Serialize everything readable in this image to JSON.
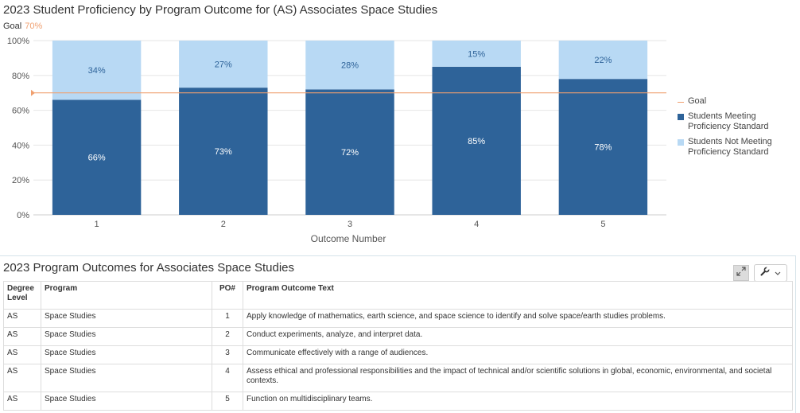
{
  "chart_title": "2023 Student Proficiency by Program Outcome for (AS) Associates Space Studies",
  "goal_label": "Goal",
  "goal_value_label": "70%",
  "colors": {
    "meeting": "#2e6399",
    "not_meeting": "#b8d9f4",
    "goal_line": "#f0a070",
    "grid": "#e6e6e6"
  },
  "chart_data": {
    "type": "bar",
    "stacked": true,
    "categories": [
      "1",
      "2",
      "3",
      "4",
      "5"
    ],
    "series": [
      {
        "name": "Students Meeting Proficiency Standard",
        "values": [
          66,
          73,
          72,
          85,
          78
        ]
      },
      {
        "name": "Students Not Meeting Proficiency Standard",
        "values": [
          34,
          27,
          28,
          15,
          22
        ]
      }
    ],
    "goal": 70,
    "xlabel": "Outcome Number",
    "ylabel": "",
    "ylim": [
      0,
      100
    ],
    "yticks": [
      "0%",
      "20%",
      "40%",
      "60%",
      "80%",
      "100%"
    ],
    "grid": true,
    "legend_position": "right"
  },
  "legend": {
    "goal": "Goal",
    "meeting": "Students Meeting Proficiency Standard",
    "not_meeting": "Students Not Meeting Proficiency Standard"
  },
  "table": {
    "title": "2023 Program Outcomes for Associates Space Studies",
    "headers": {
      "degree": "Degree Level",
      "program": "Program",
      "po": "PO#",
      "text": "Program Outcome Text"
    },
    "rows": [
      {
        "degree": "AS",
        "program": "Space Studies",
        "po": "1",
        "text": "Apply knowledge of mathematics, earth science, and space science to identify and solve space/earth studies problems."
      },
      {
        "degree": "AS",
        "program": "Space Studies",
        "po": "2",
        "text": "Conduct experiments, analyze, and interpret data."
      },
      {
        "degree": "AS",
        "program": "Space Studies",
        "po": "3",
        "text": "Communicate effectively with a range of audiences."
      },
      {
        "degree": "AS",
        "program": "Space Studies",
        "po": "4",
        "text": "Assess ethical and professional responsibilities and the impact of technical and/or scientific solutions in global, economic, environmental, and societal contexts."
      },
      {
        "degree": "AS",
        "program": "Space Studies",
        "po": "5",
        "text": "Function on multidisciplinary teams."
      }
    ]
  },
  "icons": {
    "expand": "expand-icon",
    "tools": "wrench-icon",
    "dropdown": "chevron-down-icon"
  }
}
